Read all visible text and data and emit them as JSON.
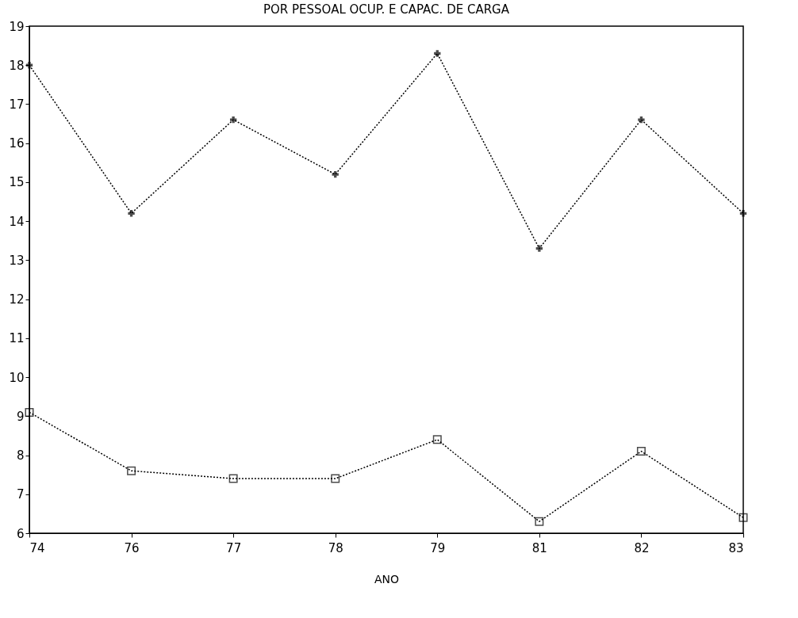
{
  "chart_data": {
    "type": "line",
    "title": "POR PESSOAL OCUP. E CAPAC. DE CARGA",
    "xlabel": "ANO",
    "categories": [
      "74",
      "76",
      "77",
      "78",
      "79",
      "81",
      "82",
      "83"
    ],
    "series": [
      {
        "color": "#000000",
        "marker": "cross",
        "values": [
          18.0,
          14.2,
          16.6,
          15.2,
          18.3,
          13.3,
          16.6,
          14.2
        ]
      },
      {
        "color": "#000000",
        "marker": "square",
        "values": [
          9.1,
          7.6,
          7.4,
          7.4,
          8.4,
          6.3,
          8.1,
          6.4
        ]
      }
    ],
    "ylim": [
      6,
      19
    ],
    "yticks": [
      6,
      7,
      8,
      9,
      10,
      11,
      12,
      13,
      14,
      15,
      16,
      17,
      18,
      19
    ],
    "line_style": "dotted"
  }
}
